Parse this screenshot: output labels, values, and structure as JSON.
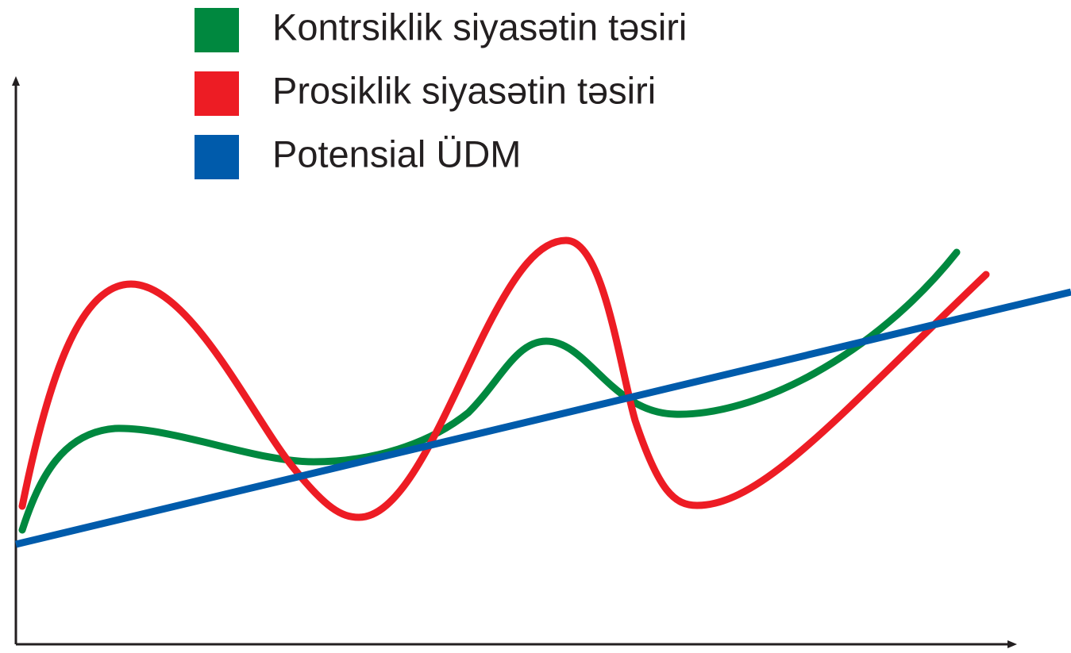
{
  "legend": [
    {
      "label": "Kontrsiklik siyasətin təsiri",
      "color": "#00883f"
    },
    {
      "label": "Prosiklik siyasətin təsiri",
      "color": "#ed1c24"
    },
    {
      "label": "Potensial ÜDM",
      "color": "#005bab"
    }
  ]
}
